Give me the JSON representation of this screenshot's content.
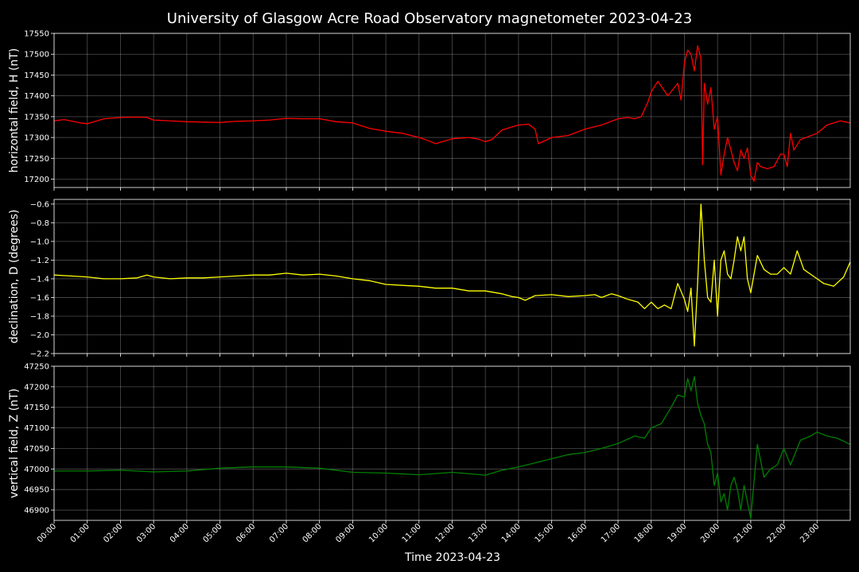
{
  "chart_data": {
    "type": "line",
    "title": "University of Glasgow Acre Road Observatory magnetometer 2023-04-23",
    "xlabel": "Time 2023-04-23",
    "x_range_hours": [
      0,
      24
    ],
    "grid": true,
    "colors": {
      "background": "#000000",
      "text": "#ffffff",
      "grid": "#808080"
    },
    "x_ticks": [
      "00:00",
      "01:00",
      "02:00",
      "03:00",
      "04:00",
      "05:00",
      "06:00",
      "07:00",
      "08:00",
      "09:00",
      "10:00",
      "11:00",
      "12:00",
      "13:00",
      "14:00",
      "15:00",
      "16:00",
      "17:00",
      "18:00",
      "19:00",
      "20:00",
      "21:00",
      "22:00",
      "23:00"
    ],
    "panels": [
      {
        "name": "H",
        "ylabel": "horizontal field, H (nT)",
        "color": "#ff0000",
        "ylim": [
          17180,
          17550
        ],
        "y_ticks": [
          "17200",
          "17250",
          "17300",
          "17350",
          "17400",
          "17450",
          "17500",
          "17550"
        ],
        "x": [
          0,
          0.3,
          0.8,
          1,
          1.5,
          2,
          2.5,
          2.8,
          3,
          3.5,
          4,
          4.5,
          5,
          5.5,
          6,
          6.5,
          7,
          7.5,
          8,
          8.5,
          9,
          9.5,
          10,
          10.5,
          11,
          11.2,
          11.5,
          12,
          12.5,
          12.8,
          13,
          13.2,
          13.5,
          14,
          14.3,
          14.5,
          14.6,
          15,
          15.5,
          16,
          16.5,
          17,
          17.3,
          17.5,
          17.7,
          17.9,
          18,
          18.2,
          18.5,
          18.8,
          18.9,
          19,
          19.1,
          19.2,
          19.3,
          19.4,
          19.5,
          19.55,
          19.6,
          19.7,
          19.8,
          19.9,
          20,
          20.1,
          20.2,
          20.3,
          20.4,
          20.5,
          20.6,
          20.7,
          20.8,
          20.9,
          21,
          21.1,
          21.2,
          21.3,
          21.5,
          21.7,
          21.9,
          22,
          22.1,
          22.2,
          22.3,
          22.5,
          23,
          23.3,
          23.5,
          23.7,
          24
        ],
        "y": [
          17340,
          17343,
          17335,
          17333,
          17345,
          17348,
          17349,
          17348,
          17342,
          17340,
          17338,
          17337,
          17336,
          17339,
          17340,
          17342,
          17346,
          17345,
          17345,
          17338,
          17335,
          17322,
          17315,
          17310,
          17300,
          17295,
          17285,
          17297,
          17300,
          17296,
          17290,
          17295,
          17318,
          17330,
          17332,
          17320,
          17285,
          17300,
          17305,
          17320,
          17330,
          17345,
          17348,
          17345,
          17350,
          17385,
          17410,
          17435,
          17400,
          17430,
          17390,
          17480,
          17510,
          17500,
          17460,
          17520,
          17490,
          17235,
          17430,
          17380,
          17420,
          17320,
          17350,
          17210,
          17260,
          17300,
          17270,
          17240,
          17220,
          17270,
          17250,
          17275,
          17210,
          17195,
          17240,
          17230,
          17225,
          17230,
          17260,
          17260,
          17230,
          17310,
          17270,
          17295,
          17310,
          17330,
          17335,
          17340,
          17335
        ]
      },
      {
        "name": "D",
        "ylabel": "declination, D (degrees)",
        "color": "#ffff00",
        "ylim": [
          -2.2,
          -0.55
        ],
        "y_ticks": [
          "−2.2",
          "−2.0",
          "−1.8",
          "−1.6",
          "−1.4",
          "−1.2",
          "−1.0",
          "−0.8",
          "−0.6"
        ],
        "x": [
          0,
          0.5,
          1,
          1.5,
          2,
          2.5,
          2.8,
          3,
          3.5,
          4,
          4.5,
          5,
          5.5,
          6,
          6.5,
          7,
          7.5,
          8,
          8.5,
          9,
          9.5,
          10,
          10.5,
          11,
          11.5,
          12,
          12.5,
          13,
          13.5,
          13.8,
          14,
          14.2,
          14.5,
          15,
          15.5,
          16,
          16.3,
          16.5,
          16.8,
          17,
          17.3,
          17.6,
          17.8,
          18,
          18.2,
          18.4,
          18.6,
          18.8,
          19,
          19.1,
          19.2,
          19.3,
          19.4,
          19.5,
          19.6,
          19.7,
          19.8,
          19.9,
          20,
          20.1,
          20.2,
          20.3,
          20.4,
          20.5,
          20.6,
          20.7,
          20.8,
          20.9,
          21,
          21.2,
          21.4,
          21.6,
          21.8,
          22,
          22.2,
          22.4,
          22.6,
          22.8,
          23,
          23.2,
          23.5,
          23.8,
          24
        ],
        "y": [
          -1.36,
          -1.37,
          -1.38,
          -1.4,
          -1.4,
          -1.39,
          -1.36,
          -1.38,
          -1.4,
          -1.39,
          -1.39,
          -1.38,
          -1.37,
          -1.36,
          -1.36,
          -1.34,
          -1.36,
          -1.35,
          -1.37,
          -1.4,
          -1.42,
          -1.46,
          -1.47,
          -1.48,
          -1.5,
          -1.5,
          -1.53,
          -1.53,
          -1.56,
          -1.59,
          -1.6,
          -1.63,
          -1.58,
          -1.57,
          -1.59,
          -1.58,
          -1.57,
          -1.6,
          -1.56,
          -1.58,
          -1.62,
          -1.65,
          -1.72,
          -1.65,
          -1.72,
          -1.68,
          -1.72,
          -1.45,
          -1.62,
          -1.75,
          -1.5,
          -2.12,
          -1.45,
          -0.6,
          -1.2,
          -1.6,
          -1.65,
          -1.2,
          -1.8,
          -1.2,
          -1.1,
          -1.35,
          -1.4,
          -1.2,
          -0.95,
          -1.1,
          -0.95,
          -1.4,
          -1.55,
          -1.15,
          -1.3,
          -1.35,
          -1.35,
          -1.28,
          -1.35,
          -1.1,
          -1.3,
          -1.35,
          -1.4,
          -1.45,
          -1.48,
          -1.38,
          -1.22
        ]
      },
      {
        "name": "Z",
        "ylabel": "vertical field, Z (nT)",
        "color": "#008000",
        "ylim": [
          46875,
          47250
        ],
        "y_ticks": [
          "46900",
          "46950",
          "47000",
          "47050",
          "47100",
          "47150",
          "47200",
          "47250"
        ],
        "x": [
          0,
          1,
          2,
          3,
          4,
          5,
          6,
          7,
          8,
          9,
          10,
          11,
          12,
          13,
          13.5,
          14,
          14.5,
          15,
          15.5,
          16,
          16.5,
          17,
          17.5,
          17.8,
          18,
          18.3,
          18.6,
          18.8,
          19,
          19.1,
          19.2,
          19.3,
          19.4,
          19.5,
          19.6,
          19.7,
          19.8,
          19.9,
          20,
          20.1,
          20.2,
          20.3,
          20.4,
          20.5,
          20.6,
          20.7,
          20.8,
          20.9,
          21,
          21.2,
          21.4,
          21.6,
          21.8,
          22,
          22.2,
          22.5,
          22.8,
          23,
          23.3,
          23.6,
          24
        ],
        "y": [
          46995,
          46995,
          46997,
          46993,
          46995,
          47002,
          47005,
          47005,
          47002,
          46992,
          46990,
          46986,
          46992,
          46985,
          46997,
          47005,
          47015,
          47025,
          47035,
          47040,
          47050,
          47062,
          47080,
          47075,
          47100,
          47110,
          47150,
          47180,
          47175,
          47220,
          47190,
          47225,
          47160,
          47130,
          47110,
          47060,
          47040,
          46960,
          46990,
          46920,
          46940,
          46900,
          46960,
          46980,
          46950,
          46900,
          46960,
          46920,
          46880,
          47060,
          46980,
          47000,
          47010,
          47050,
          47010,
          47070,
          47080,
          47090,
          47080,
          47075,
          47060
        ]
      }
    ]
  }
}
